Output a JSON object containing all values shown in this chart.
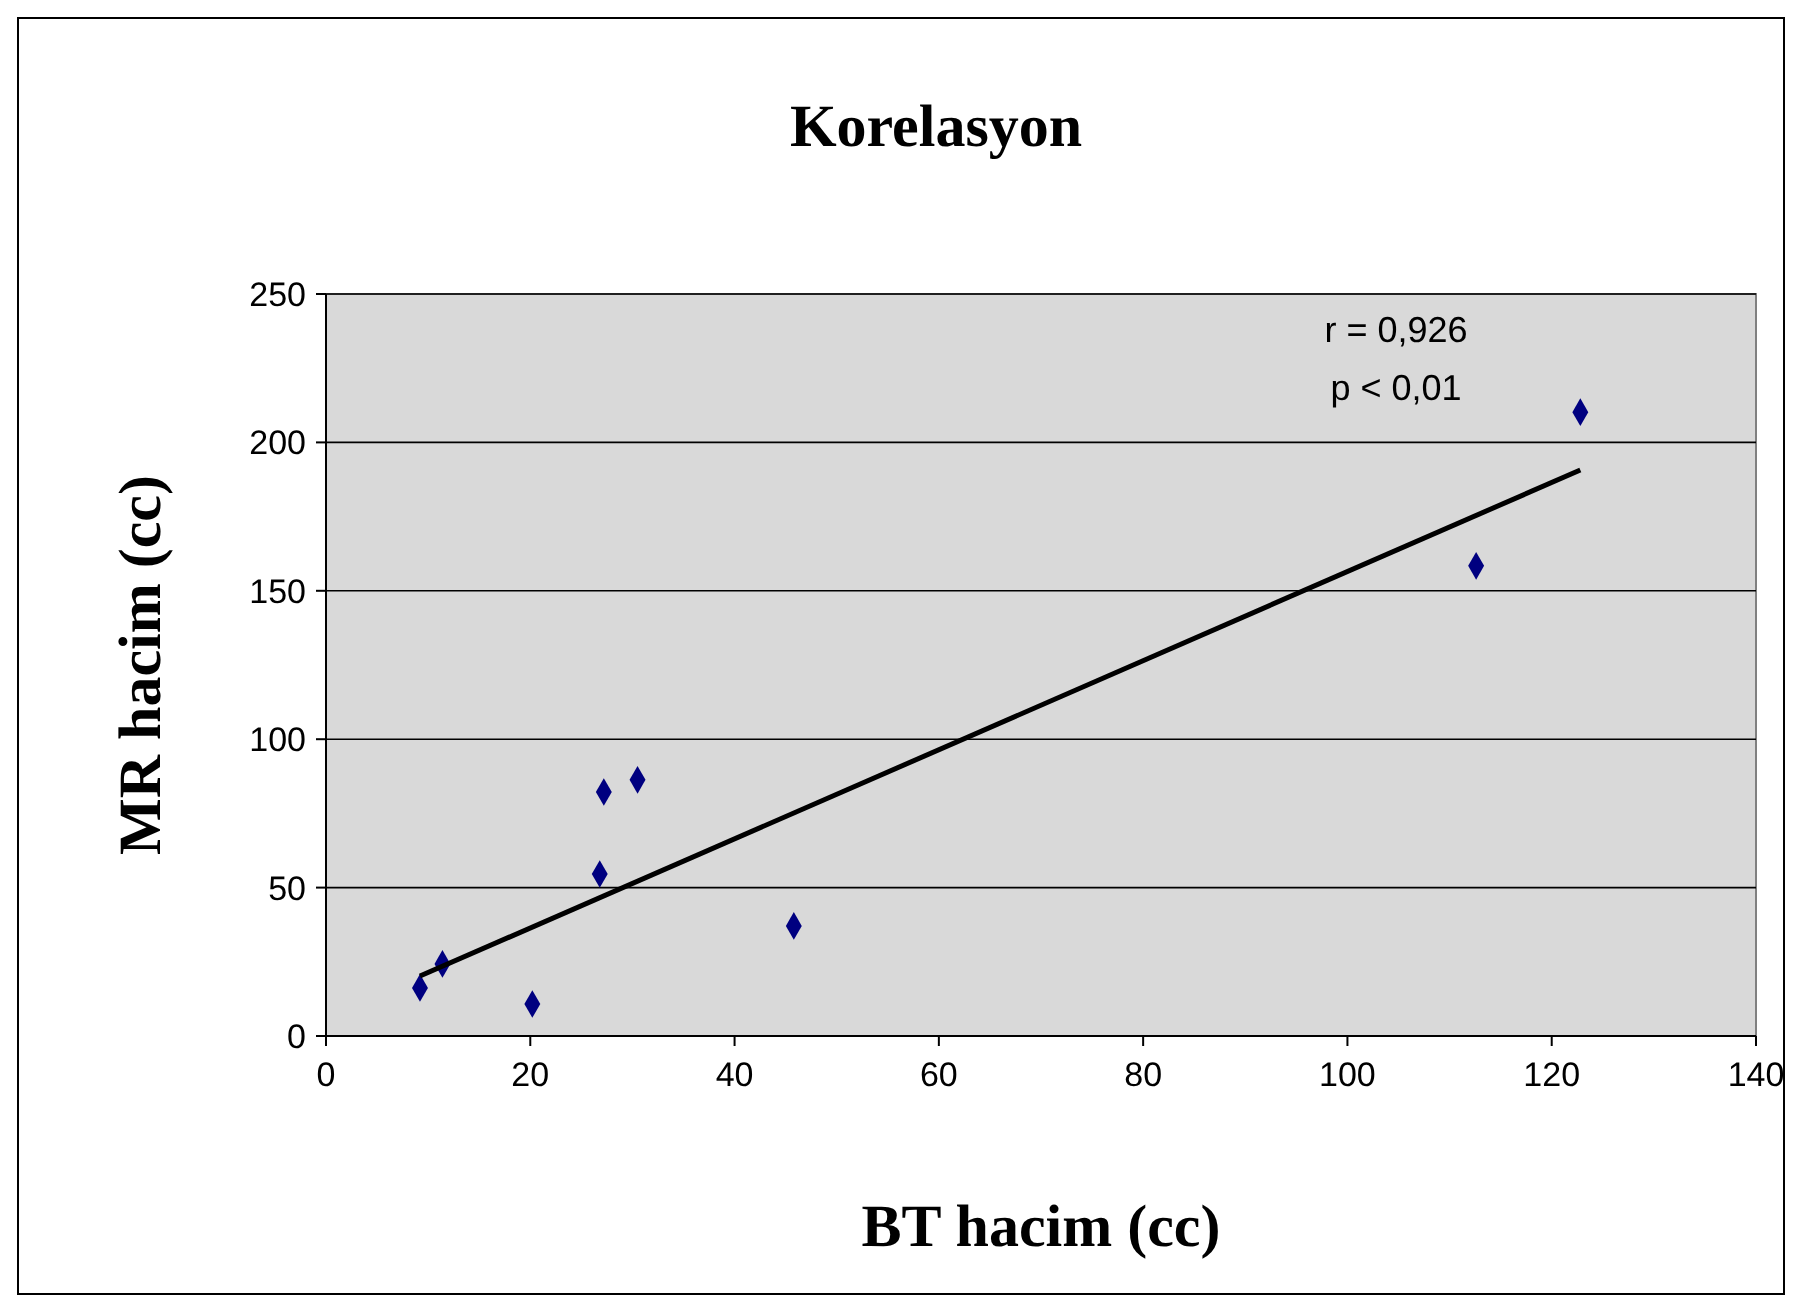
{
  "chart_data": {
    "type": "scatter",
    "title": "Korelasyon",
    "xlabel": "BT hacim (cc)",
    "ylabel": "MR hacim (cc)",
    "xlim": [
      0,
      140
    ],
    "xticks": [
      0,
      20,
      40,
      60,
      80,
      100,
      120,
      140
    ],
    "ylim": [
      0,
      250
    ],
    "yticks": [
      0,
      50,
      100,
      150,
      200,
      250
    ],
    "grid": "y",
    "marker": "diamond",
    "annotations": [
      "r = 0,926",
      "p < 0,01"
    ],
    "series": [
      {
        "color": "#000080",
        "x": [
          9.2,
          11.4,
          20.2,
          26.8,
          27.2,
          30.5,
          45.8,
          112.6,
          122.8
        ],
        "values": [
          16.2,
          24.3,
          10.8,
          54.6,
          82.2,
          86.3,
          37.1,
          158.4,
          210.2
        ]
      },
      {
        "type": "line",
        "color": "#000000",
        "x": [
          9.2,
          122.8
        ],
        "values": [
          20.2,
          190.7
        ],
        "marker": "none",
        "line_style": "solid"
      }
    ]
  }
}
